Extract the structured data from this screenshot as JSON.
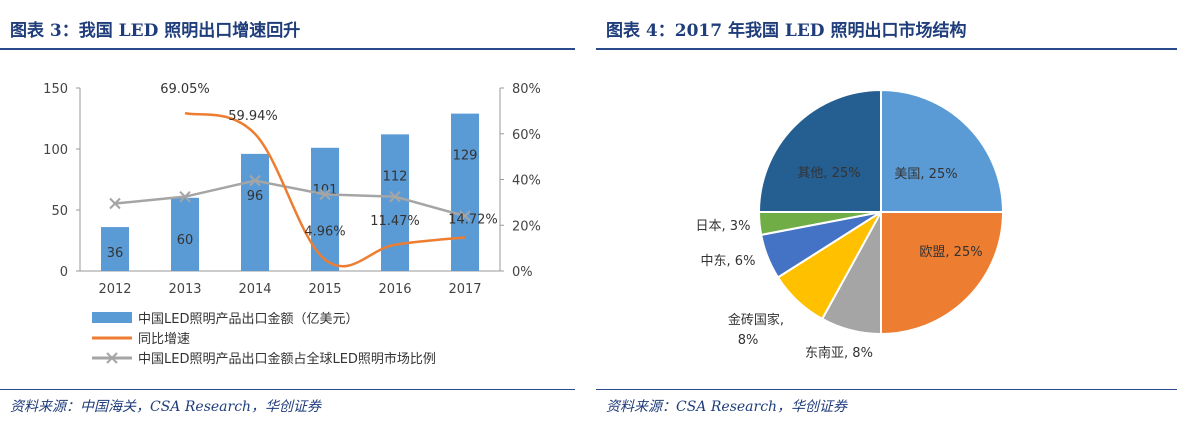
{
  "left": {
    "title": "图表   3：我国 LED 照明出口增速回升",
    "source": "资料来源：中国海关，CSA Research，华创证券"
  },
  "right": {
    "title": "图表   4：2017 年我国 LED 照明出口市场结构",
    "source": "资料来源：CSA Research，华创证券"
  },
  "chart_data": [
    {
      "type": "bar",
      "title": "我国LED照明出口增速回升",
      "categories": [
        "2012",
        "2013",
        "2014",
        "2015",
        "2016",
        "2017"
      ],
      "series": [
        {
          "name": "中国LED照明产品出口金额（亿美元）",
          "kind": "bar",
          "axis": "left",
          "values": [
            36,
            60,
            96,
            101,
            112,
            129
          ],
          "labels": [
            "36",
            "60",
            "96",
            "101",
            "112",
            "129"
          ],
          "color": "#5b9bd5"
        },
        {
          "name": "同比增速",
          "kind": "line",
          "axis": "right",
          "values": [
            null,
            69.05,
            59.94,
            4.96,
            11.47,
            14.72
          ],
          "labels": [
            "",
            "69.05%",
            "59.94%",
            "4.96%",
            "11.47%",
            "14.72%"
          ],
          "color": "#ed7d31"
        },
        {
          "name": "中国LED照明产品出口金额占全球LED照明市场比例",
          "kind": "line-marker",
          "axis": "right",
          "values": [
            29.5,
            32.5,
            39.5,
            33.5,
            32.5,
            24
          ],
          "color": "#a5a5a5"
        }
      ],
      "ylim_left": [
        0,
        150
      ],
      "yticks_left": [
        "0",
        "50",
        "100",
        "150"
      ],
      "ylim_right": [
        0,
        80
      ],
      "yticks_right": [
        "0%",
        "20%",
        "40%",
        "60%",
        "80%"
      ]
    },
    {
      "type": "pie",
      "title": "2017 年我国 LED 照明出口市场结构",
      "slices": [
        {
          "name": "美国",
          "value": 25,
          "label": "美国, 25%",
          "color": "#5b9bd5"
        },
        {
          "name": "欧盟",
          "value": 25,
          "label": "欧盟, 25%",
          "color": "#ed7d31"
        },
        {
          "name": "东南亚",
          "value": 8,
          "label": "东南亚, 8%",
          "color": "#a5a5a5"
        },
        {
          "name": "金砖国家",
          "value": 8,
          "label": "金砖国家,",
          "label2": "8%",
          "color": "#ffc000"
        },
        {
          "name": "中东",
          "value": 6,
          "label": "中东, 6%",
          "color": "#4472c4"
        },
        {
          "name": "日本",
          "value": 3,
          "label": "日本, 3%",
          "color": "#70ad47"
        },
        {
          "name": "其他",
          "value": 25,
          "label": "其他, 25%",
          "color": "#255e91"
        }
      ]
    }
  ]
}
